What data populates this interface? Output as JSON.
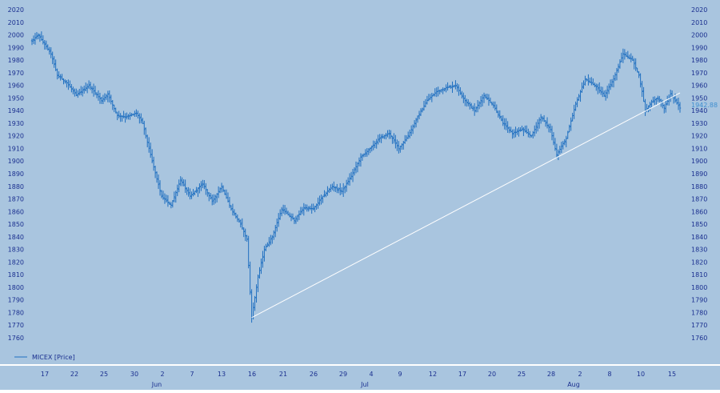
{
  "chart_data": {
    "type": "ohlc",
    "legend": {
      "label": "MICEX [Price]",
      "placement": "bottom-left"
    },
    "last_price_label": "1942.88",
    "y_axis": {
      "min": 1760,
      "max": 2020,
      "step": 10,
      "ticks": [
        "1760",
        "1770",
        "1780",
        "1790",
        "1800",
        "1810",
        "1820",
        "1830",
        "1840",
        "1850",
        "1860",
        "1870",
        "1880",
        "1890",
        "1900",
        "1910",
        "1920",
        "1930",
        "1940",
        "1950",
        "1960",
        "1970",
        "1980",
        "1990",
        "2000",
        "2010",
        "2020"
      ],
      "sides": "left and right"
    },
    "x_axis": {
      "day_ticks": [
        "17",
        "22",
        "25",
        "30",
        "2",
        "7",
        "13",
        "16",
        "21",
        "26",
        "29",
        "4",
        "9",
        "12",
        "17",
        "20",
        "25",
        "28",
        "2",
        "8",
        "10",
        "15"
      ],
      "month_labels": [
        "Jun",
        "Jul",
        "Aug"
      ]
    },
    "price_path": [
      [
        0,
        1995
      ],
      [
        2,
        2000
      ],
      [
        6,
        1985
      ],
      [
        8,
        1968
      ],
      [
        11,
        1962
      ],
      [
        14,
        1952
      ],
      [
        18,
        1960
      ],
      [
        22,
        1948
      ],
      [
        24,
        1953
      ],
      [
        27,
        1936
      ],
      [
        30,
        1935
      ],
      [
        33,
        1938
      ],
      [
        35,
        1930
      ],
      [
        38,
        1900
      ],
      [
        41,
        1872
      ],
      [
        44,
        1865
      ],
      [
        47,
        1885
      ],
      [
        50,
        1872
      ],
      [
        54,
        1882
      ],
      [
        57,
        1868
      ],
      [
        60,
        1880
      ],
      [
        63,
        1862
      ],
      [
        66,
        1850
      ],
      [
        68,
        1838
      ],
      [
        69.5,
        1776
      ],
      [
        71.5,
        1808
      ],
      [
        73.5,
        1830
      ],
      [
        76,
        1840
      ],
      [
        79,
        1862
      ],
      [
        83,
        1853
      ],
      [
        86,
        1863
      ],
      [
        89,
        1862
      ],
      [
        92,
        1872
      ],
      [
        95,
        1880
      ],
      [
        98,
        1876
      ],
      [
        101,
        1888
      ],
      [
        104,
        1903
      ],
      [
        107,
        1910
      ],
      [
        110,
        1918
      ],
      [
        113,
        1922
      ],
      [
        116,
        1910
      ],
      [
        119,
        1920
      ],
      [
        122,
        1935
      ],
      [
        125,
        1948
      ],
      [
        128,
        1955
      ],
      [
        131,
        1958
      ],
      [
        134,
        1960
      ],
      [
        137,
        1948
      ],
      [
        140,
        1940
      ],
      [
        143,
        1952
      ],
      [
        146,
        1944
      ],
      [
        149,
        1930
      ],
      [
        152,
        1922
      ],
      [
        155,
        1925
      ],
      [
        158,
        1920
      ],
      [
        161,
        1935
      ],
      [
        164,
        1925
      ],
      [
        166,
        1905
      ],
      [
        169,
        1918
      ],
      [
        172,
        1945
      ],
      [
        175,
        1965
      ],
      [
        178,
        1960
      ],
      [
        181,
        1952
      ],
      [
        184,
        1965
      ],
      [
        187,
        1985
      ],
      [
        190,
        1980
      ],
      [
        192,
        1968
      ],
      [
        193,
        1955
      ],
      [
        194,
        1940
      ],
      [
        196,
        1947
      ],
      [
        198,
        1950
      ],
      [
        200,
        1942
      ],
      [
        202,
        1953
      ],
      [
        204,
        1946
      ],
      [
        205,
        1942
      ]
    ],
    "trend_line": {
      "from": [
        69.5,
        1776
      ],
      "to": [
        205,
        1954
      ]
    },
    "colors": {
      "plot_background": "#a9c5df",
      "series": "#1f6fc0",
      "text": "#1a2f8f",
      "trend_line": "#ffffff",
      "last_price": "#3f8fd0"
    }
  }
}
